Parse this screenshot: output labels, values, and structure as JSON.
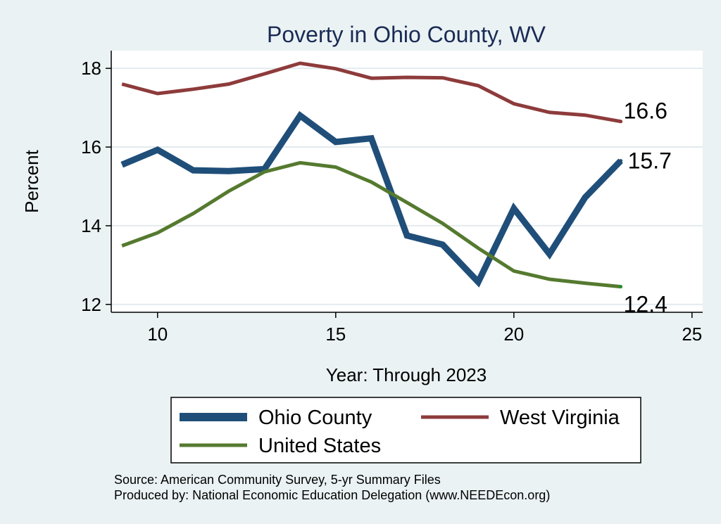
{
  "chart_data": {
    "type": "line",
    "title": "Poverty in Ohio County, WV",
    "xlabel": "Year: Through 2023",
    "ylabel": "Percent",
    "xlim": [
      8.7,
      25.3
    ],
    "ylim": [
      11.8,
      18.45
    ],
    "xticks": [
      10,
      15,
      20,
      25
    ],
    "yticks": [
      12,
      14,
      16,
      18
    ],
    "grid": true,
    "x": [
      9,
      10,
      11,
      12,
      13,
      14,
      15,
      16,
      17,
      18,
      19,
      20,
      21,
      22,
      23
    ],
    "series": [
      {
        "name": "Ohio County",
        "color": "#1F4E79",
        "width": 9,
        "values": [
          15.55,
          15.93,
          15.41,
          15.39,
          15.44,
          16.8,
          16.13,
          16.22,
          13.75,
          13.52,
          12.57,
          14.44,
          13.28,
          14.72,
          15.65
        ],
        "end_label": "15.7"
      },
      {
        "name": "West Virginia",
        "color": "#8E3B3B",
        "width": 5,
        "values": [
          17.6,
          17.36,
          17.47,
          17.6,
          17.86,
          18.13,
          17.99,
          17.75,
          17.77,
          17.76,
          17.56,
          17.1,
          16.88,
          16.81,
          16.65
        ],
        "end_label": "16.6"
      },
      {
        "name": "United States",
        "color": "#557A2F",
        "width": 5,
        "values": [
          13.49,
          13.82,
          14.31,
          14.88,
          15.37,
          15.6,
          15.49,
          15.11,
          14.59,
          14.06,
          13.43,
          12.85,
          12.64,
          12.54,
          12.45
        ],
        "end_label": "12.4"
      }
    ],
    "legend": {
      "placement": "bottom",
      "entries": [
        "Ohio County",
        "West Virginia",
        "United States"
      ]
    },
    "notes": [
      "Source: American Community Survey, 5-yr Summary Files",
      "Produced by: National Economic Education Delegation (www.NEEDEcon.org)"
    ]
  }
}
